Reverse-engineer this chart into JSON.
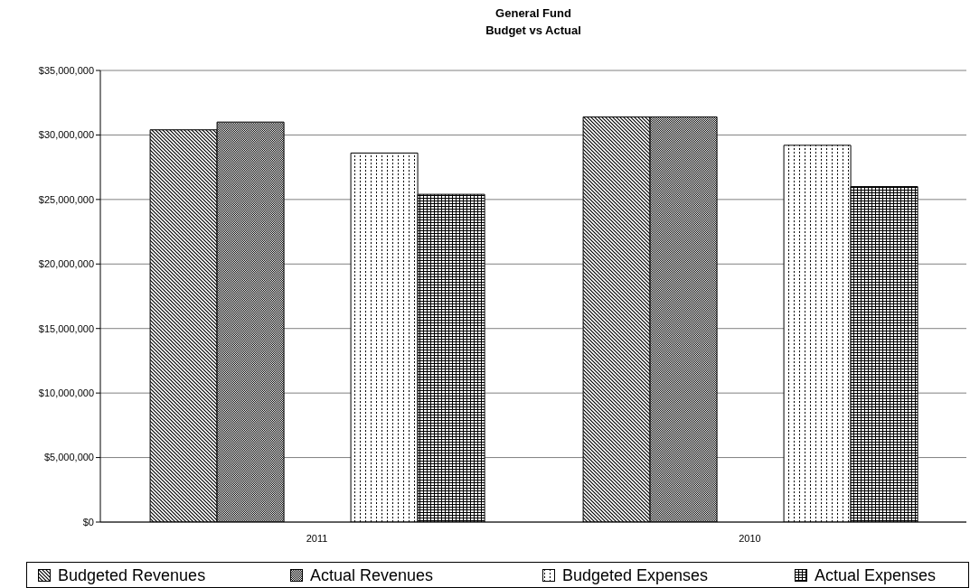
{
  "chart_data": {
    "type": "bar",
    "title": "General Fund",
    "subtitle": "Budget vs Actual",
    "categories": [
      "2011",
      "2010"
    ],
    "series": [
      {
        "name": "Budgeted Revenues",
        "color": "#000000",
        "values": [
          30400000,
          31400000
        ]
      },
      {
        "name": "Actual Revenues",
        "color": "#000000",
        "values": [
          31000000,
          31400000
        ]
      },
      {
        "name": "Budgeted Expenses",
        "color": "#000000",
        "values": [
          28600000,
          29200000
        ]
      },
      {
        "name": "Actual Expenses",
        "color": "#000000",
        "values": [
          25400000,
          26000000
        ]
      }
    ],
    "ylim": [
      0,
      35000000
    ],
    "yticks": [
      {
        "value": 0,
        "label": "$0"
      },
      {
        "value": 5000000,
        "label": "$5,000,000"
      },
      {
        "value": 10000000,
        "label": "$10,000,000"
      },
      {
        "value": 15000000,
        "label": "$15,000,000"
      },
      {
        "value": 20000000,
        "label": "$20,000,000"
      },
      {
        "value": 25000000,
        "label": "$25,000,000"
      },
      {
        "value": 30000000,
        "label": "$30,000,000"
      },
      {
        "value": 35000000,
        "label": "$35,000,000"
      }
    ],
    "grid": "y",
    "legend": "bottom"
  }
}
